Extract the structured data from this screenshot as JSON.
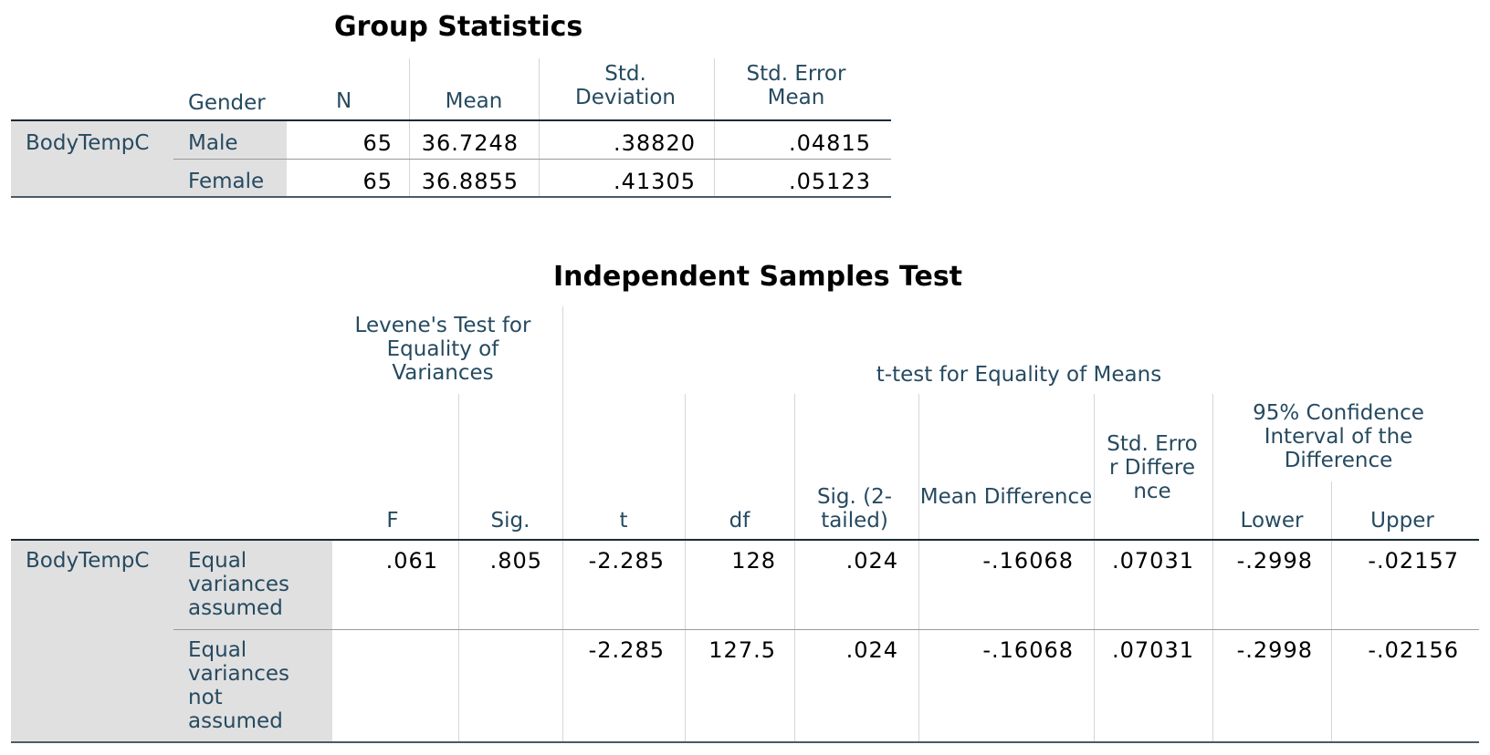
{
  "group_statistics": {
    "title": "Group Statistics",
    "headers": {
      "gender": "Gender",
      "n": "N",
      "mean": "Mean",
      "std_dev": "Std. Deviation",
      "std_err": "Std. Error Mean"
    },
    "variable": "BodyTempC",
    "rows": [
      {
        "gender": "Male",
        "n": "65",
        "mean": "36.7248",
        "std_dev": ".38820",
        "std_err": ".04815"
      },
      {
        "gender": "Female",
        "n": "65",
        "mean": "36.8855",
        "std_dev": ".41305",
        "std_err": ".05123"
      }
    ]
  },
  "independent_samples_test": {
    "title": "Independent Samples Test",
    "headers": {
      "levene": "Levene's Test for Equality of Variances",
      "ttest": "t-test for Equality of Means",
      "ci": "95% Confidence Interval of the Difference",
      "f": "F",
      "sig": "Sig.",
      "t": "t",
      "df": "df",
      "sig2": "Sig. (2-tailed)",
      "mean_diff": "Mean Difference",
      "std_err_diff": "Std. Error Difference",
      "lower": "Lower",
      "upper": "Upper"
    },
    "variable": "BodyTempC",
    "rows": [
      {
        "label": "Equal variances assumed",
        "f": ".061",
        "sig": ".805",
        "t": "-2.285",
        "df": "128",
        "sig2": ".024",
        "mean_diff": "-.16068",
        "std_err_diff": ".07031",
        "lower": "-.2998",
        "upper": "-.02157"
      },
      {
        "label": "Equal variances not assumed",
        "f": "",
        "sig": "",
        "t": "-2.285",
        "df": "127.5",
        "sig2": ".024",
        "mean_diff": "-.16068",
        "std_err_diff": ".07031",
        "lower": "-.2998",
        "upper": "-.02156"
      }
    ]
  }
}
